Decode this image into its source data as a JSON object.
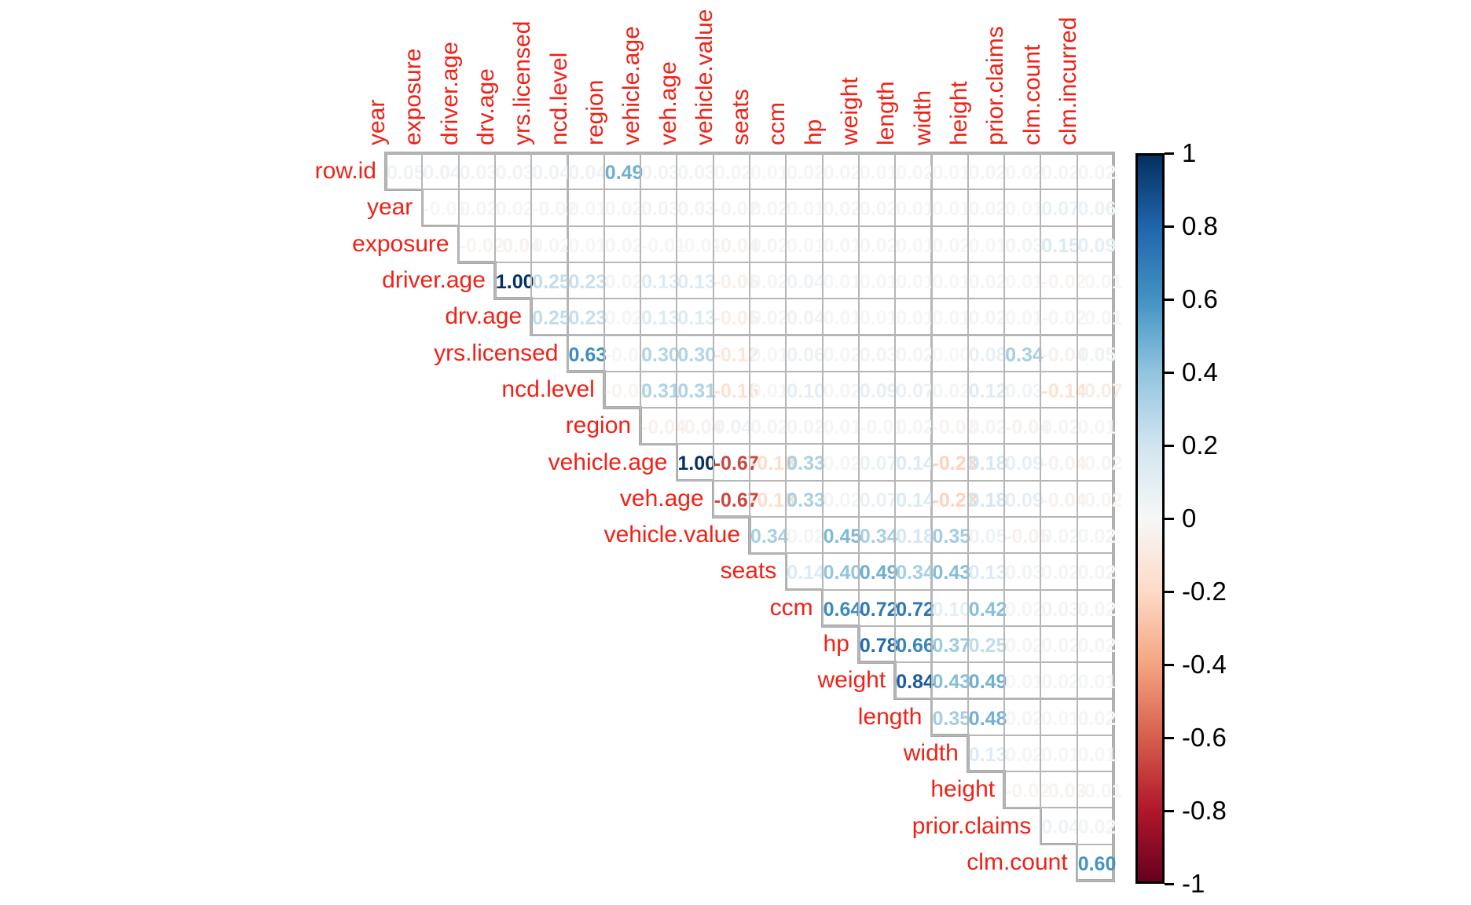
{
  "chart_data": {
    "type": "heatmap",
    "subtype": "correlation-matrix-upper-triangle",
    "title": "",
    "row_variables": [
      "row.id",
      "year",
      "exposure",
      "driver.age",
      "drv.age",
      "yrs.licensed",
      "ncd.level",
      "region",
      "vehicle.age",
      "veh.age",
      "vehicle.value",
      "seats",
      "ccm",
      "hp",
      "weight",
      "length",
      "width",
      "height",
      "prior.claims",
      "clm.count"
    ],
    "col_variables": [
      "year",
      "exposure",
      "driver.age",
      "drv.age",
      "yrs.licensed",
      "ncd.level",
      "region",
      "vehicle.age",
      "veh.age",
      "vehicle.value",
      "seats",
      "ccm",
      "hp",
      "weight",
      "length",
      "width",
      "height",
      "prior.claims",
      "clm.count",
      "clm.incurred"
    ],
    "rows": [
      {
        "label": "row.id",
        "start_col": "year",
        "values": [
          0.05,
          0.04,
          0.03,
          0.03,
          0.04,
          0.04,
          0.49,
          0.03,
          0.03,
          0.02,
          0.01,
          0.02,
          0.02,
          0.01,
          0.02,
          0.01,
          0.02,
          0.02,
          0.02,
          0.02
        ]
      },
      {
        "label": "year",
        "start_col": "exposure",
        "values": [
          -0.01,
          0.02,
          0.02,
          -0.02,
          0.01,
          0.02,
          0.03,
          0.03,
          -0.02,
          0.02,
          0.01,
          0.02,
          0.02,
          0.01,
          0.01,
          0.02,
          0.01,
          0.07,
          0.06
        ]
      },
      {
        "label": "exposure",
        "start_col": "driver.age",
        "values": [
          -0.02,
          -0.04,
          0.02,
          0.01,
          0.02,
          -0.01,
          -0.01,
          -0.04,
          0.02,
          0.01,
          0.01,
          0.02,
          0.01,
          0.02,
          0.01,
          0.03,
          0.15,
          0.09
        ]
      },
      {
        "label": "driver.age",
        "start_col": "drv.age",
        "values": [
          1.0,
          0.25,
          0.23,
          0.02,
          0.13,
          0.13,
          -0.06,
          0.02,
          0.04,
          0.01,
          0.01,
          0.01,
          0.01,
          0.02,
          0.01,
          -0.02,
          -0.01
        ]
      },
      {
        "label": "drv.age",
        "start_col": "yrs.licensed",
        "values": [
          0.25,
          0.23,
          0.02,
          0.13,
          0.13,
          -0.06,
          0.02,
          0.04,
          0.01,
          0.01,
          0.01,
          0.01,
          0.02,
          0.01,
          -0.02,
          -0.01
        ]
      },
      {
        "label": "yrs.licensed",
        "start_col": "ncd.level",
        "values": [
          0.63,
          -0.01,
          0.3,
          0.3,
          -0.12,
          0.01,
          0.06,
          0.02,
          0.03,
          0.02,
          0.0,
          0.08,
          0.34,
          -0.04,
          0.05
        ]
      },
      {
        "label": "ncd.level",
        "start_col": "region",
        "values": [
          -0.02,
          0.31,
          0.31,
          -0.16,
          0.01,
          0.1,
          0.02,
          0.09,
          0.07,
          0.02,
          0.12,
          0.03,
          -0.14,
          -0.07
        ]
      },
      {
        "label": "region",
        "start_col": "vehicle.age",
        "values": [
          -0.04,
          -0.04,
          0.04,
          0.02,
          0.02,
          0.01,
          -0.01,
          0.02,
          -0.03,
          0.02,
          -0.04,
          0.02,
          0.01
        ]
      },
      {
        "label": "vehicle.age",
        "start_col": "veh.age",
        "values": [
          1.0,
          -0.67,
          -0.18,
          0.33,
          0.02,
          0.07,
          0.14,
          -0.23,
          0.18,
          0.09,
          -0.04,
          -0.02
        ]
      },
      {
        "label": "veh.age",
        "start_col": "vehicle.value",
        "values": [
          -0.67,
          -0.18,
          0.33,
          0.02,
          0.07,
          0.14,
          -0.23,
          0.18,
          0.09,
          -0.04,
          -0.02
        ]
      },
      {
        "label": "vehicle.value",
        "start_col": "seats",
        "values": [
          0.34,
          0.02,
          0.45,
          0.34,
          0.18,
          0.35,
          0.05,
          -0.05,
          0.02,
          0.02
        ]
      },
      {
        "label": "seats",
        "start_col": "ccm",
        "values": [
          0.14,
          0.4,
          0.49,
          0.34,
          0.43,
          0.13,
          0.03,
          0.02,
          0.02
        ]
      },
      {
        "label": "ccm",
        "start_col": "hp",
        "values": [
          0.64,
          0.72,
          0.72,
          0.1,
          0.42,
          0.02,
          0.03,
          0.02
        ]
      },
      {
        "label": "hp",
        "start_col": "weight",
        "values": [
          0.78,
          0.66,
          0.37,
          0.25,
          0.02,
          0.02,
          0.02
        ]
      },
      {
        "label": "weight",
        "start_col": "length",
        "values": [
          0.84,
          0.43,
          0.49,
          0.01,
          0.02,
          0.01
        ]
      },
      {
        "label": "length",
        "start_col": "width",
        "values": [
          0.35,
          0.48,
          0.02,
          0.01,
          0.02
        ]
      },
      {
        "label": "width",
        "start_col": "height",
        "values": [
          0.13,
          0.02,
          0.01,
          0.01
        ]
      },
      {
        "label": "height",
        "start_col": "prior.claims",
        "values": [
          -0.02,
          -0.03,
          -0.01
        ]
      },
      {
        "label": "prior.claims",
        "start_col": "clm.count",
        "values": [
          0.04,
          0.02
        ]
      },
      {
        "label": "clm.count",
        "start_col": "clm.incurred",
        "values": [
          0.6
        ]
      }
    ],
    "colorbar": {
      "min": -1,
      "max": 1,
      "tick_labels": [
        "1",
        "0.8",
        "0.6",
        "0.4",
        "0.2",
        "0",
        "-0.2",
        "-0.4",
        "-0.6",
        "-0.8",
        "-1"
      ],
      "palette_stops_low_to_high": [
        "#67001F",
        "#B2182B",
        "#D6604D",
        "#F4A582",
        "#FDDBC7",
        "#F7F7F7",
        "#D1E5F0",
        "#92C5DE",
        "#4393C3",
        "#2166AC",
        "#053061"
      ]
    },
    "style": {
      "label_color": "#ee2217",
      "grid_color": "#b6b6b6",
      "grid_edge_color": "#a8a8a8",
      "background": "#ffffff"
    },
    "legend_position": "right",
    "grid": true
  }
}
